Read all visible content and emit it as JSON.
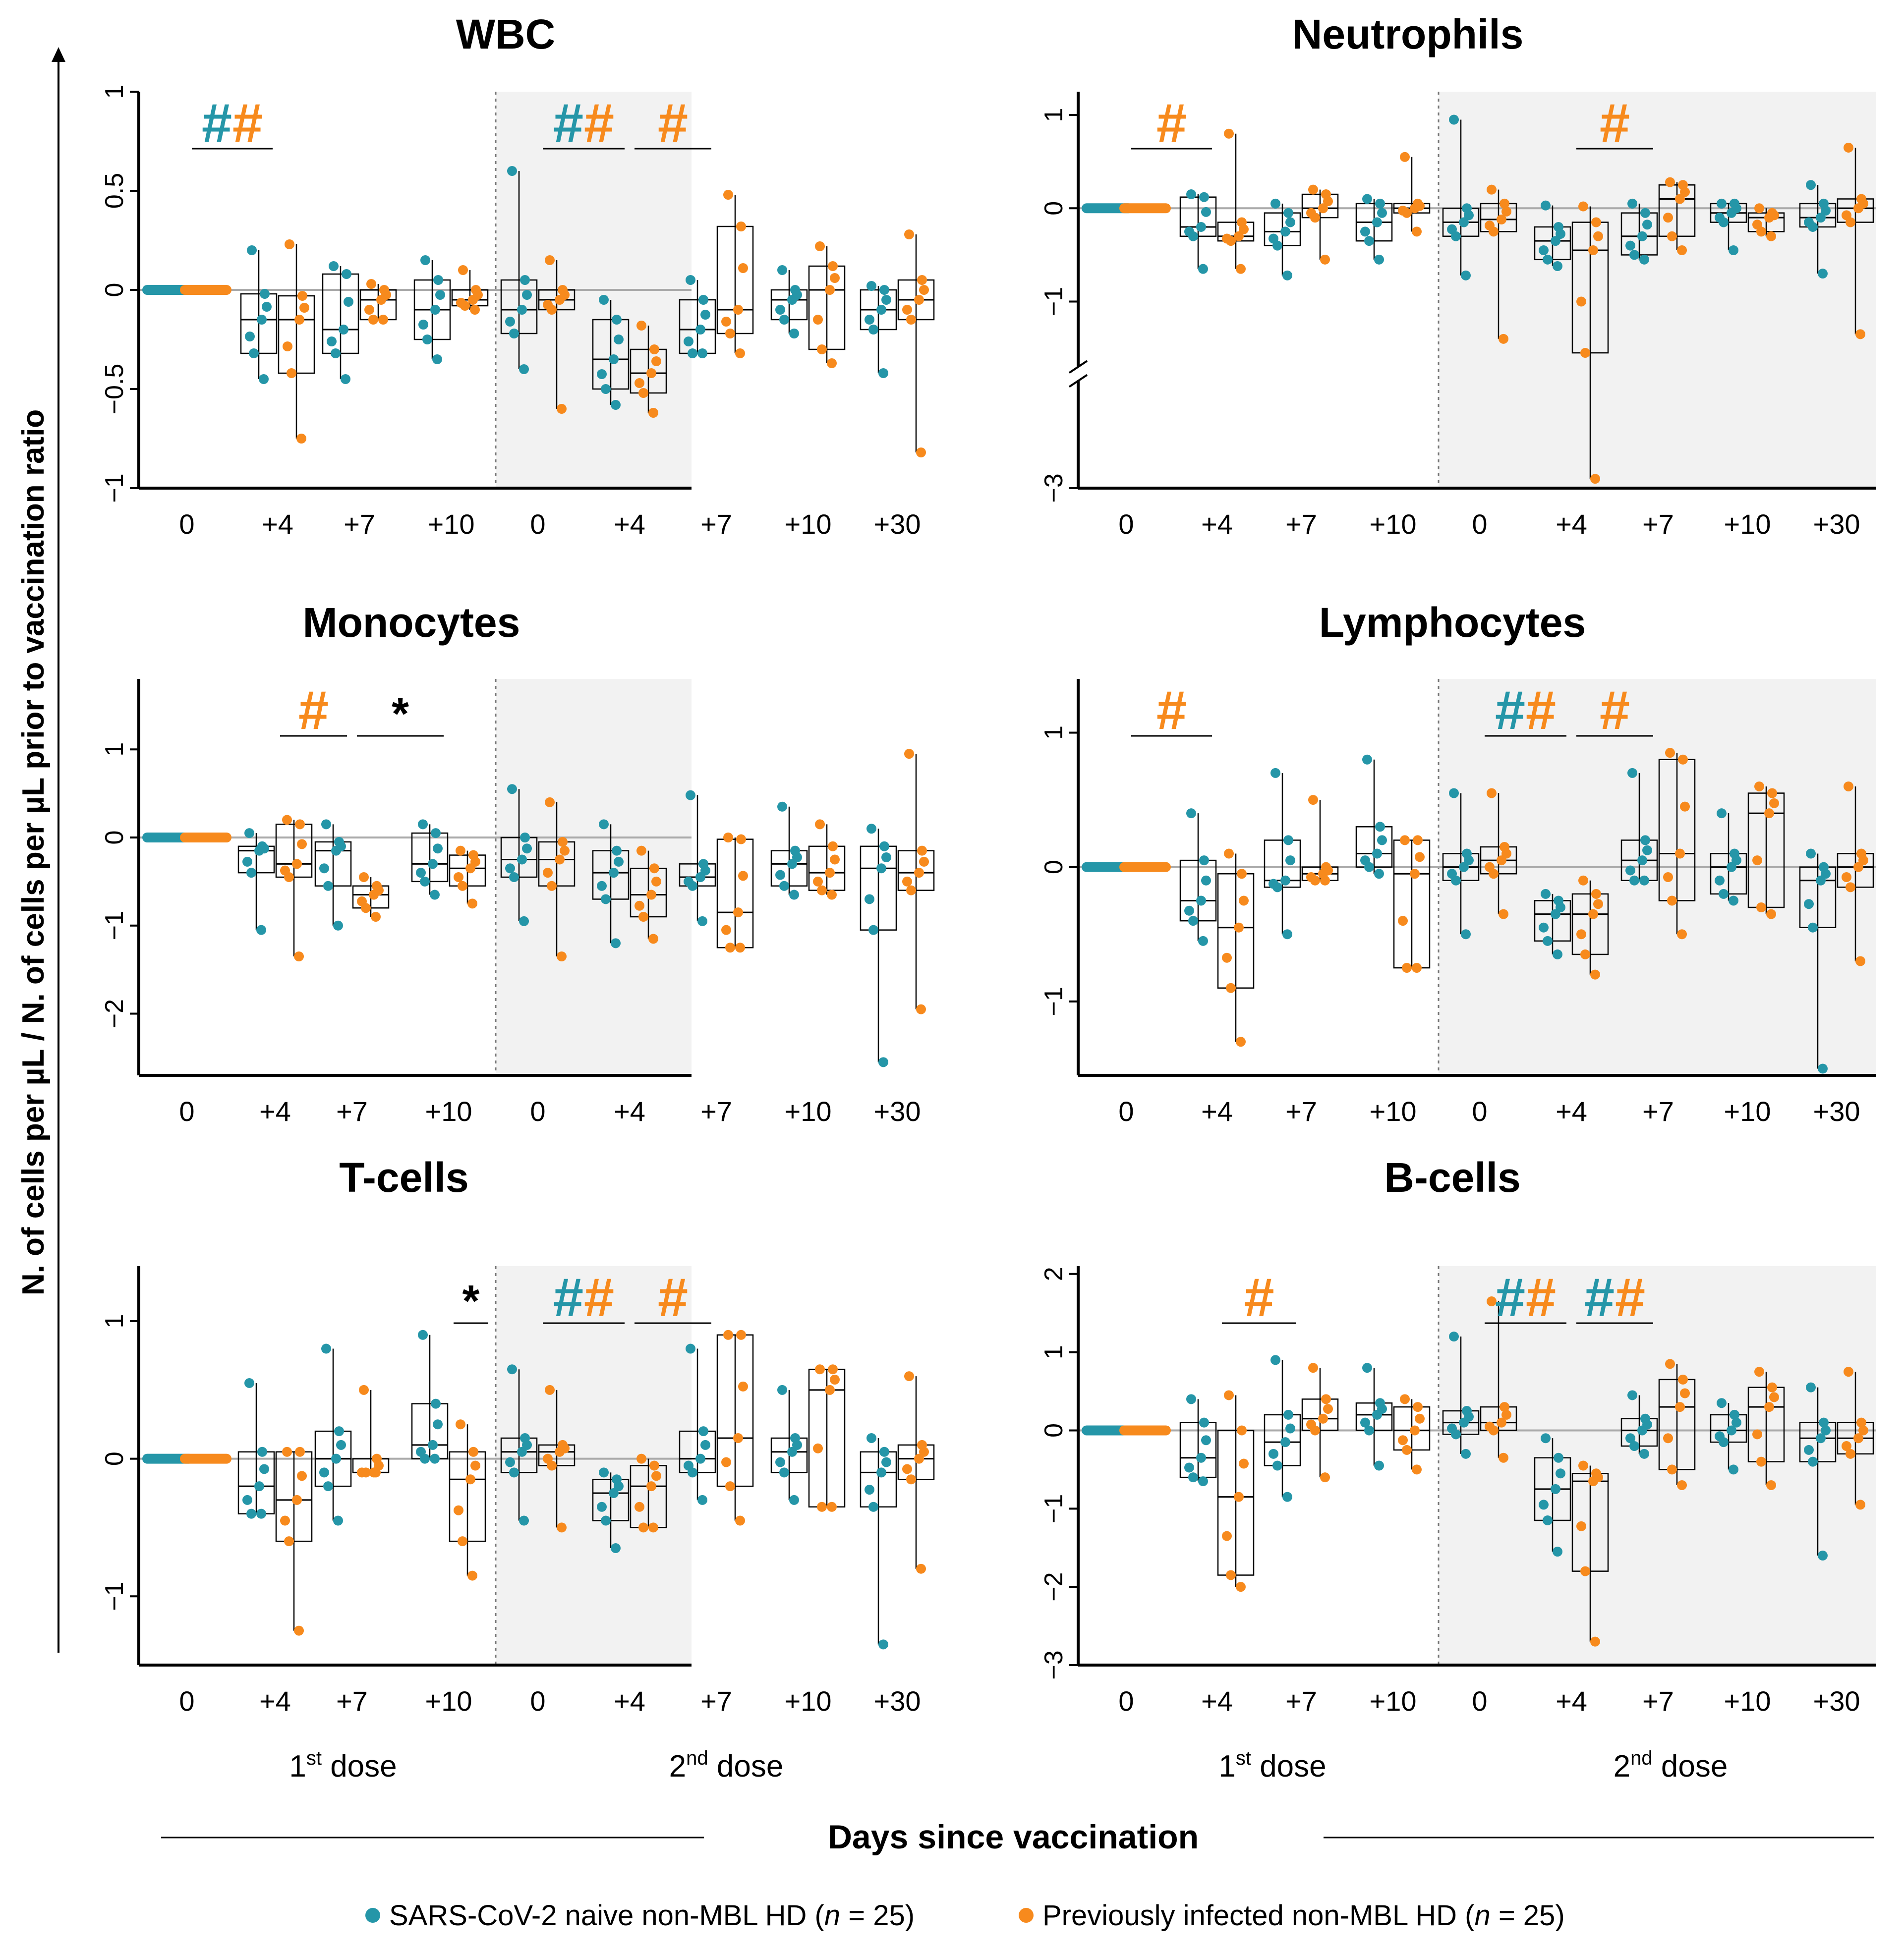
{
  "figure": {
    "ylabel": "N. of cells per µL / N. of cells per µL prior to vaccination ratio",
    "xlabel": "Days since vaccination",
    "dose1_label": "1",
    "dose1_sup": "st",
    "dose2_label": "2",
    "dose2_sup": "nd",
    "dose_suffix": " dose",
    "legend": [
      {
        "label": "SARS-CoV-2 naive non-MBL HD",
        "n_label": "n",
        "n_value": " = 25)",
        "color": "#2596a8"
      },
      {
        "label": "Previously infected non-MBL HD",
        "n_label": "n",
        "n_value": " = 25)",
        "color": "#f78a1d"
      }
    ],
    "colors": {
      "naive": "#2596a8",
      "infected": "#f78a1d",
      "shade": "#f2f2f2",
      "ref": "#aaaaaa"
    }
  },
  "chart_data": [
    {
      "type": "box",
      "title": "WBC",
      "timepoints": [
        "0",
        "+4",
        "+7",
        "+10",
        "0",
        "+4",
        "+7",
        "+10",
        "+30"
      ],
      "ylim": [
        -1,
        1
      ],
      "yticks": [
        "-1",
        "-0.5",
        "0",
        "0.5",
        "1"
      ],
      "ytick_values": [
        -1,
        -0.5,
        0,
        0.5,
        1
      ],
      "series": [
        {
          "name": "SARS-CoV-2 naive",
          "median": [
            0,
            -0.15,
            -0.2,
            -0.1,
            -0.1,
            -0.35,
            -0.2,
            -0.05,
            -0.1
          ],
          "q1": [
            0,
            -0.32,
            -0.32,
            -0.25,
            -0.22,
            -0.5,
            -0.32,
            -0.15,
            -0.2
          ],
          "q3": [
            0,
            -0.02,
            0.08,
            0.05,
            0.05,
            -0.15,
            -0.05,
            0,
            0
          ],
          "min": [
            0,
            -0.45,
            -0.45,
            -0.35,
            -0.4,
            -0.58,
            -0.32,
            -0.22,
            -0.42
          ],
          "max": [
            0,
            0.2,
            0.12,
            0.15,
            0.6,
            -0.05,
            0.05,
            0.1,
            0.02
          ]
        },
        {
          "name": "Previously infected",
          "median": [
            0,
            -0.15,
            -0.05,
            -0.05,
            -0.05,
            -0.42,
            -0.1,
            0,
            -0.05
          ],
          "q1": [
            0,
            -0.42,
            -0.15,
            -0.08,
            -0.1,
            -0.52,
            -0.22,
            -0.3,
            -0.15
          ],
          "q3": [
            0,
            -0.03,
            0,
            0,
            0,
            -0.3,
            0.32,
            0.12,
            0.05
          ],
          "min": [
            0,
            -0.75,
            -0.15,
            -0.1,
            -0.6,
            -0.62,
            -0.32,
            -0.37,
            -0.82
          ],
          "max": [
            0,
            0.23,
            0.03,
            0.1,
            0.15,
            -0.18,
            0.48,
            0.22,
            0.28
          ]
        }
      ],
      "annotations": [
        {
          "text": "#",
          "color": "naive",
          "span": [
            0,
            1
          ]
        },
        {
          "text": "#",
          "color": "infected",
          "span": [
            0,
            1
          ]
        },
        {
          "text": "#",
          "color": "naive",
          "span": [
            4,
            5
          ]
        },
        {
          "text": "#",
          "color": "infected",
          "span": [
            4,
            5
          ]
        },
        {
          "text": "#",
          "color": "infected",
          "span": [
            5,
            6
          ]
        }
      ]
    },
    {
      "type": "box",
      "title": "Neutrophils",
      "timepoints": [
        "0",
        "+4",
        "+7",
        "+10",
        "0",
        "+4",
        "+7",
        "+10",
        "+30"
      ],
      "ylim": [
        -3,
        1.25
      ],
      "yticks": [
        "-3",
        "-1",
        "0",
        "1"
      ],
      "ytick_values": [
        -3,
        -1,
        0,
        1
      ],
      "axis_break": [
        -1.7,
        -1.85
      ],
      "series": [
        {
          "name": "SARS-CoV-2 naive",
          "median": [
            0,
            -0.2,
            -0.25,
            -0.15,
            -0.15,
            -0.35,
            -0.3,
            -0.05,
            -0.1
          ],
          "q1": [
            0,
            -0.3,
            -0.4,
            -0.35,
            -0.3,
            -0.55,
            -0.5,
            -0.15,
            -0.2
          ],
          "q3": [
            0,
            0.12,
            -0.05,
            0.05,
            0,
            -0.2,
            -0.05,
            0.05,
            0.05
          ],
          "min": [
            0,
            -0.65,
            -0.72,
            -0.55,
            -0.72,
            -0.62,
            -0.55,
            -0.45,
            -0.7
          ],
          "max": [
            0,
            0.15,
            0.05,
            0.1,
            0.95,
            0.03,
            0.05,
            0.05,
            0.25
          ]
        },
        {
          "name": "Previously infected",
          "median": [
            0,
            -0.3,
            0,
            0,
            -0.12,
            -0.45,
            0.1,
            -0.1,
            0
          ],
          "q1": [
            0,
            -0.35,
            -0.1,
            -0.05,
            -0.25,
            -1.55,
            -0.3,
            -0.25,
            -0.15
          ],
          "q3": [
            0,
            -0.15,
            0.15,
            0.05,
            0.05,
            -0.15,
            0.25,
            -0.05,
            0.1
          ],
          "min": [
            0,
            -0.65,
            -0.55,
            -0.25,
            -1.4,
            -2.9,
            -0.45,
            -0.3,
            -1.35
          ],
          "max": [
            0,
            0.8,
            0.2,
            0.55,
            0.2,
            0.02,
            0.28,
            0,
            0.65
          ]
        }
      ],
      "annotations": [
        {
          "text": "#",
          "color": "infected",
          "span": [
            0,
            1
          ]
        },
        {
          "text": "#",
          "color": "infected",
          "span": [
            5,
            6
          ]
        }
      ]
    },
    {
      "type": "box",
      "title": "Monocytes",
      "timepoints": [
        "0",
        "+4",
        "+7",
        "+10",
        "0",
        "+4",
        "+7",
        "+10",
        "+30"
      ],
      "ylim": [
        -2.7,
        1.8
      ],
      "yticks": [
        "-2",
        "-1",
        "0",
        "1"
      ],
      "ytick_values": [
        -2,
        -1,
        0,
        1
      ],
      "series": [
        {
          "name": "SARS-CoV-2 naive",
          "median": [
            0,
            -0.15,
            -0.15,
            -0.3,
            -0.25,
            -0.4,
            -0.45,
            -0.3,
            -0.35
          ],
          "q1": [
            0,
            -0.4,
            -0.55,
            -0.5,
            -0.45,
            -0.7,
            -0.55,
            -0.55,
            -1.05
          ],
          "q3": [
            0,
            -0.1,
            -0.05,
            0.05,
            0,
            -0.15,
            -0.3,
            -0.15,
            -0.1
          ],
          "min": [
            0,
            -1.05,
            -1.0,
            -0.65,
            -0.95,
            -1.2,
            -0.95,
            -0.65,
            -2.55
          ],
          "max": [
            0,
            0.05,
            0.15,
            0.15,
            0.55,
            0.15,
            0.48,
            0.35,
            0.1
          ]
        },
        {
          "name": "Previously infected",
          "median": [
            0,
            -0.3,
            -0.65,
            -0.35,
            -0.25,
            -0.65,
            -0.85,
            -0.4,
            -0.4
          ],
          "q1": [
            0,
            -0.45,
            -0.8,
            -0.55,
            -0.55,
            -0.9,
            -1.25,
            -0.6,
            -0.6
          ],
          "q3": [
            0,
            0.15,
            -0.55,
            -0.2,
            -0.05,
            -0.35,
            -0.02,
            -0.1,
            -0.15
          ],
          "min": [
            0,
            -1.35,
            -0.9,
            -0.75,
            -1.35,
            -1.15,
            -1.25,
            -0.65,
            -1.95
          ],
          "max": [
            0,
            0.2,
            -0.45,
            -0.15,
            0.4,
            -0.15,
            0,
            0.15,
            0.95
          ]
        }
      ],
      "annotations": [
        {
          "text": "#",
          "color": "infected",
          "span": [
            1,
            2
          ]
        },
        {
          "text": "*",
          "color": "black",
          "span": [
            2,
            3
          ]
        }
      ]
    },
    {
      "type": "box",
      "title": "Lymphocytes",
      "timepoints": [
        "0",
        "+4",
        "+7",
        "+10",
        "0",
        "+4",
        "+7",
        "+10",
        "+30"
      ],
      "ylim": [
        -1.55,
        1.4
      ],
      "yticks": [
        "-1",
        "0",
        "1"
      ],
      "ytick_values": [
        -1,
        0,
        1
      ],
      "series": [
        {
          "name": "SARS-CoV-2 naive",
          "median": [
            0,
            -0.25,
            -0.1,
            0.1,
            0,
            -0.35,
            0.05,
            0,
            -0.1
          ],
          "q1": [
            0,
            -0.4,
            -0.15,
            0,
            -0.1,
            -0.55,
            -0.1,
            -0.2,
            -0.45
          ],
          "q3": [
            0,
            0.05,
            0.2,
            0.3,
            0.1,
            -0.25,
            0.2,
            0.1,
            0
          ],
          "min": [
            0,
            -0.55,
            -0.5,
            -0.05,
            -0.5,
            -0.65,
            -0.1,
            -0.25,
            -1.5
          ],
          "max": [
            0,
            0.4,
            0.7,
            0.8,
            0.55,
            -0.2,
            0.7,
            0.4,
            0.1
          ]
        },
        {
          "name": "Previously infected",
          "median": [
            0,
            -0.45,
            -0.05,
            -0.05,
            0.05,
            -0.35,
            0.1,
            0.4,
            0
          ],
          "q1": [
            0,
            -0.9,
            -0.1,
            -0.75,
            -0.05,
            -0.65,
            -0.25,
            -0.3,
            -0.15
          ],
          "q3": [
            0,
            -0.05,
            0,
            0.2,
            0.15,
            -0.2,
            0.8,
            0.55,
            0.1
          ],
          "min": [
            0,
            -1.3,
            -0.1,
            -0.75,
            -0.35,
            -0.8,
            -0.5,
            -0.35,
            -0.7
          ],
          "max": [
            0,
            0.1,
            0.5,
            0.2,
            0.55,
            -0.1,
            0.85,
            0.6,
            0.6
          ]
        }
      ],
      "annotations": [
        {
          "text": "#",
          "color": "infected",
          "span": [
            0,
            1
          ]
        },
        {
          "text": "#",
          "color": "naive",
          "span": [
            4,
            5
          ]
        },
        {
          "text": "#",
          "color": "infected",
          "span": [
            4,
            5
          ]
        },
        {
          "text": "#",
          "color": "infected",
          "span": [
            5,
            6
          ]
        }
      ]
    },
    {
      "type": "box",
      "title": "T-cells",
      "timepoints": [
        "0",
        "+4",
        "+7",
        "+10",
        "0",
        "+4",
        "+7",
        "+10",
        "+30"
      ],
      "ylim": [
        -1.5,
        1.4
      ],
      "yticks": [
        "-1",
        "0",
        "1"
      ],
      "ytick_values": [
        -1,
        0,
        1
      ],
      "series": [
        {
          "name": "SARS-CoV-2 naive",
          "median": [
            0,
            -0.2,
            0,
            0.1,
            0.05,
            -0.25,
            0,
            0.05,
            -0.1
          ],
          "q1": [
            0,
            -0.4,
            -0.2,
            0,
            -0.1,
            -0.45,
            -0.1,
            -0.1,
            -0.35
          ],
          "q3": [
            0,
            0.05,
            0.2,
            0.4,
            0.15,
            -0.15,
            0.2,
            0.15,
            0.05
          ],
          "min": [
            0,
            -0.4,
            -0.45,
            0,
            -0.45,
            -0.65,
            -0.3,
            -0.3,
            -1.35
          ],
          "max": [
            0,
            0.55,
            0.8,
            0.9,
            0.65,
            -0.1,
            0.8,
            0.5,
            0.15
          ]
        },
        {
          "name": "Previously infected",
          "median": [
            0,
            -0.3,
            -0.1,
            -0.15,
            0.05,
            -0.2,
            0.15,
            0.5,
            0
          ],
          "q1": [
            0,
            -0.6,
            -0.1,
            -0.6,
            -0.05,
            -0.5,
            -0.2,
            -0.35,
            -0.15
          ],
          "q3": [
            0,
            0.05,
            0,
            0.05,
            0.1,
            -0.05,
            0.9,
            0.65,
            0.1
          ],
          "min": [
            0,
            -1.25,
            -0.1,
            -0.85,
            -0.5,
            -0.5,
            -0.45,
            -0.35,
            -0.8
          ],
          "max": [
            0,
            0.05,
            0.5,
            0.25,
            0.5,
            0,
            0.9,
            0.65,
            0.6
          ]
        }
      ],
      "annotations": [
        {
          "text": "*",
          "color": "black",
          "span": [
            3,
            3.9
          ]
        },
        {
          "text": "#",
          "color": "naive",
          "span": [
            4,
            5
          ]
        },
        {
          "text": "#",
          "color": "infected",
          "span": [
            4,
            5
          ]
        },
        {
          "text": "#",
          "color": "infected",
          "span": [
            5,
            6
          ]
        }
      ]
    },
    {
      "type": "box",
      "title": "B-cells",
      "timepoints": [
        "0",
        "+4",
        "+7",
        "+10",
        "0",
        "+4",
        "+7",
        "+10",
        "+30"
      ],
      "ylim": [
        -3,
        2.1
      ],
      "yticks": [
        "-3",
        "-2",
        "-1",
        "0",
        "1",
        "2"
      ],
      "ytick_values": [
        -3,
        -2,
        -1,
        0,
        1,
        2
      ],
      "series": [
        {
          "name": "SARS-CoV-2 naive",
          "median": [
            0,
            -0.35,
            -0.15,
            0.2,
            0.1,
            -0.75,
            0,
            0,
            -0.1
          ],
          "q1": [
            0,
            -0.6,
            -0.45,
            0,
            -0.05,
            -1.15,
            -0.2,
            -0.15,
            -0.4
          ],
          "q3": [
            0,
            0.1,
            0.2,
            0.35,
            0.25,
            -0.35,
            0.15,
            0.2,
            0.1
          ],
          "min": [
            0,
            -0.65,
            -0.85,
            -0.45,
            -0.3,
            -1.55,
            -0.3,
            -0.5,
            -1.6
          ],
          "max": [
            0,
            0.4,
            0.9,
            0.8,
            1.2,
            -0.1,
            0.45,
            0.35,
            0.55
          ]
        },
        {
          "name": "Previously infected",
          "median": [
            0,
            -0.85,
            0.15,
            0,
            0.1,
            -0.65,
            0.3,
            0.3,
            -0.1
          ],
          "q1": [
            0,
            -1.85,
            0,
            -0.25,
            0,
            -1.8,
            -0.5,
            -0.4,
            -0.3
          ],
          "q3": [
            0,
            0,
            0.4,
            0.3,
            0.3,
            -0.55,
            0.65,
            0.55,
            0.1
          ],
          "min": [
            0,
            -2,
            -0.6,
            -0.5,
            -0.35,
            -2.7,
            -0.7,
            -0.7,
            -0.95
          ],
          "max": [
            0,
            0.45,
            0.8,
            0.4,
            1.65,
            -0.45,
            0.85,
            0.75,
            0.75
          ]
        }
      ],
      "annotations": [
        {
          "text": "#",
          "color": "infected",
          "span": [
            1,
            2
          ]
        },
        {
          "text": "#",
          "color": "naive",
          "span": [
            4,
            5
          ]
        },
        {
          "text": "#",
          "color": "infected",
          "span": [
            4,
            5
          ]
        },
        {
          "text": "#",
          "color": "naive",
          "span": [
            5,
            6
          ]
        },
        {
          "text": "#",
          "color": "infected",
          "span": [
            5,
            6
          ]
        }
      ]
    }
  ]
}
